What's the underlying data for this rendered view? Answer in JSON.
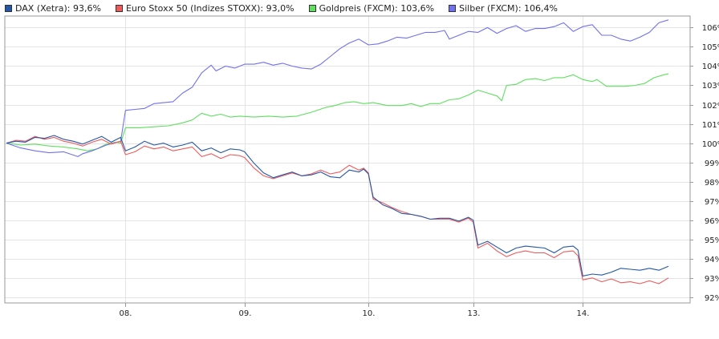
{
  "chart_data": {
    "type": "line",
    "legend_position": "top-left",
    "grid": true,
    "ylim": [
      91.7,
      106.6
    ],
    "x_ticks": [
      "08.",
      "09.",
      "10.",
      "13.",
      "14."
    ],
    "y_ticks": [
      "92%",
      "93%",
      "94%",
      "95%",
      "96%",
      "97%",
      "98%",
      "99%",
      "100%",
      "101%",
      "102%",
      "103%",
      "104%",
      "105%",
      "106%"
    ],
    "series": [
      {
        "name": "DAX (Xetra)",
        "legend_label": "DAX (Xetra): 93,6%",
        "color": "#2456a8",
        "points": [
          [
            0,
            100
          ],
          [
            2,
            100.1
          ],
          [
            4,
            100.05
          ],
          [
            6,
            100.3
          ],
          [
            8,
            100.25
          ],
          [
            10,
            100.4
          ],
          [
            12,
            100.2
          ],
          [
            14,
            100.1
          ],
          [
            16,
            99.95
          ],
          [
            18,
            100.15
          ],
          [
            20,
            100.35
          ],
          [
            22,
            100.05
          ],
          [
            24,
            100.3
          ],
          [
            25,
            99.6
          ],
          [
            27,
            99.8
          ],
          [
            29,
            100.1
          ],
          [
            31,
            99.9
          ],
          [
            33,
            100
          ],
          [
            35,
            99.8
          ],
          [
            37,
            99.9
          ],
          [
            39,
            100.05
          ],
          [
            41,
            99.6
          ],
          [
            43,
            99.75
          ],
          [
            45,
            99.5
          ],
          [
            47,
            99.7
          ],
          [
            49,
            99.65
          ],
          [
            50,
            99.55
          ],
          [
            52,
            98.95
          ],
          [
            54,
            98.45
          ],
          [
            56,
            98.2
          ],
          [
            58,
            98.35
          ],
          [
            60,
            98.5
          ],
          [
            62,
            98.3
          ],
          [
            64,
            98.35
          ],
          [
            66,
            98.5
          ],
          [
            68,
            98.25
          ],
          [
            70,
            98.2
          ],
          [
            72,
            98.6
          ],
          [
            74,
            98.5
          ],
          [
            75,
            98.65
          ],
          [
            76,
            98.4
          ],
          [
            77,
            97.2
          ],
          [
            79,
            96.8
          ],
          [
            81,
            96.6
          ],
          [
            83,
            96.35
          ],
          [
            85,
            96.3
          ],
          [
            87,
            96.2
          ],
          [
            89,
            96.05
          ],
          [
            91,
            96.1
          ],
          [
            93,
            96.1
          ],
          [
            95,
            95.95
          ],
          [
            97,
            96.15
          ],
          [
            98,
            96
          ],
          [
            99,
            94.7
          ],
          [
            101,
            94.9
          ],
          [
            103,
            94.6
          ],
          [
            105,
            94.3
          ],
          [
            107,
            94.55
          ],
          [
            109,
            94.65
          ],
          [
            111,
            94.6
          ],
          [
            113,
            94.55
          ],
          [
            115,
            94.3
          ],
          [
            117,
            94.6
          ],
          [
            119,
            94.65
          ],
          [
            120,
            94.45
          ],
          [
            121,
            93.1
          ],
          [
            123,
            93.2
          ],
          [
            125,
            93.15
          ],
          [
            127,
            93.3
          ],
          [
            129,
            93.5
          ],
          [
            131,
            93.45
          ],
          [
            133,
            93.4
          ],
          [
            135,
            93.5
          ],
          [
            137,
            93.4
          ],
          [
            139,
            93.6
          ]
        ]
      },
      {
        "name": "Euro Stoxx 50 (Indizes STOXX)",
        "legend_label": "Euro Stoxx 50 (Indizes STOXX): 93,0%",
        "color": "#f05a5a",
        "points": [
          [
            0,
            100
          ],
          [
            2,
            100.15
          ],
          [
            4,
            100.1
          ],
          [
            6,
            100.35
          ],
          [
            8,
            100.2
          ],
          [
            10,
            100.3
          ],
          [
            12,
            100.1
          ],
          [
            14,
            100
          ],
          [
            16,
            99.85
          ],
          [
            18,
            100.05
          ],
          [
            20,
            100.2
          ],
          [
            22,
            99.95
          ],
          [
            24,
            100.1
          ],
          [
            25,
            99.4
          ],
          [
            27,
            99.55
          ],
          [
            29,
            99.85
          ],
          [
            31,
            99.7
          ],
          [
            33,
            99.8
          ],
          [
            35,
            99.6
          ],
          [
            37,
            99.7
          ],
          [
            39,
            99.8
          ],
          [
            41,
            99.3
          ],
          [
            43,
            99.45
          ],
          [
            45,
            99.2
          ],
          [
            47,
            99.4
          ],
          [
            49,
            99.35
          ],
          [
            50,
            99.25
          ],
          [
            52,
            98.7
          ],
          [
            54,
            98.3
          ],
          [
            56,
            98.15
          ],
          [
            58,
            98.3
          ],
          [
            60,
            98.45
          ],
          [
            62,
            98.3
          ],
          [
            64,
            98.4
          ],
          [
            66,
            98.6
          ],
          [
            68,
            98.4
          ],
          [
            70,
            98.5
          ],
          [
            72,
            98.85
          ],
          [
            74,
            98.6
          ],
          [
            75,
            98.7
          ],
          [
            76,
            98.45
          ],
          [
            77,
            97.1
          ],
          [
            79,
            96.9
          ],
          [
            81,
            96.65
          ],
          [
            83,
            96.45
          ],
          [
            85,
            96.3
          ],
          [
            87,
            96.2
          ],
          [
            89,
            96.05
          ],
          [
            91,
            96.05
          ],
          [
            93,
            96.05
          ],
          [
            95,
            95.9
          ],
          [
            97,
            96.1
          ],
          [
            98,
            95.9
          ],
          [
            99,
            94.55
          ],
          [
            101,
            94.8
          ],
          [
            103,
            94.4
          ],
          [
            105,
            94.1
          ],
          [
            107,
            94.3
          ],
          [
            109,
            94.4
          ],
          [
            111,
            94.3
          ],
          [
            113,
            94.3
          ],
          [
            115,
            94.05
          ],
          [
            117,
            94.35
          ],
          [
            119,
            94.4
          ],
          [
            120,
            94.15
          ],
          [
            121,
            92.9
          ],
          [
            123,
            93
          ],
          [
            125,
            92.8
          ],
          [
            127,
            92.95
          ],
          [
            129,
            92.75
          ],
          [
            131,
            92.8
          ],
          [
            133,
            92.7
          ],
          [
            135,
            92.85
          ],
          [
            137,
            92.7
          ],
          [
            139,
            93
          ]
        ]
      },
      {
        "name": "Goldpreis (FXCM)",
        "legend_label": "Goldpreis (FXCM): 103,6%",
        "color": "#5ee05e",
        "points": [
          [
            0,
            100
          ],
          [
            3,
            99.9
          ],
          [
            6,
            99.95
          ],
          [
            9,
            99.85
          ],
          [
            12,
            99.8
          ],
          [
            15,
            99.7
          ],
          [
            17,
            99.6
          ],
          [
            19,
            99.7
          ],
          [
            21,
            99.95
          ],
          [
            23,
            100.05
          ],
          [
            24,
            100
          ],
          [
            25,
            100.8
          ],
          [
            28,
            100.8
          ],
          [
            31,
            100.85
          ],
          [
            34,
            100.9
          ],
          [
            37,
            101.05
          ],
          [
            39,
            101.2
          ],
          [
            41,
            101.55
          ],
          [
            43,
            101.4
          ],
          [
            45,
            101.5
          ],
          [
            47,
            101.35
          ],
          [
            49,
            101.4
          ],
          [
            52,
            101.35
          ],
          [
            55,
            101.4
          ],
          [
            58,
            101.35
          ],
          [
            61,
            101.4
          ],
          [
            64,
            101.6
          ],
          [
            67,
            101.85
          ],
          [
            69,
            101.95
          ],
          [
            71,
            102.1
          ],
          [
            73,
            102.15
          ],
          [
            75,
            102.05
          ],
          [
            77,
            102.1
          ],
          [
            80,
            101.95
          ],
          [
            83,
            101.95
          ],
          [
            85,
            102.05
          ],
          [
            87,
            101.9
          ],
          [
            89,
            102.05
          ],
          [
            91,
            102.05
          ],
          [
            93,
            102.25
          ],
          [
            95,
            102.3
          ],
          [
            97,
            102.5
          ],
          [
            99,
            102.75
          ],
          [
            101,
            102.6
          ],
          [
            103,
            102.45
          ],
          [
            104,
            102.2
          ],
          [
            105,
            103
          ],
          [
            107,
            103.05
          ],
          [
            109,
            103.3
          ],
          [
            111,
            103.35
          ],
          [
            113,
            103.25
          ],
          [
            115,
            103.4
          ],
          [
            117,
            103.4
          ],
          [
            119,
            103.55
          ],
          [
            121,
            103.3
          ],
          [
            123,
            103.2
          ],
          [
            124,
            103.3
          ],
          [
            126,
            102.95
          ],
          [
            128,
            102.95
          ],
          [
            130,
            102.95
          ],
          [
            132,
            103
          ],
          [
            134,
            103.1
          ],
          [
            136,
            103.4
          ],
          [
            138,
            103.55
          ],
          [
            139,
            103.6
          ]
        ]
      },
      {
        "name": "Silber (FXCM)",
        "legend_label": "Silber (FXCM): 106,4%",
        "color": "#7070f0",
        "points": [
          [
            0,
            100
          ],
          [
            3,
            99.75
          ],
          [
            6,
            99.6
          ],
          [
            9,
            99.5
          ],
          [
            12,
            99.55
          ],
          [
            15,
            99.3
          ],
          [
            16,
            99.45
          ],
          [
            18,
            99.6
          ],
          [
            21,
            99.9
          ],
          [
            24,
            100.1
          ],
          [
            25,
            101.7
          ],
          [
            27,
            101.75
          ],
          [
            29,
            101.8
          ],
          [
            31,
            102.05
          ],
          [
            33,
            102.1
          ],
          [
            35,
            102.15
          ],
          [
            37,
            102.6
          ],
          [
            39,
            102.9
          ],
          [
            41,
            103.65
          ],
          [
            43,
            104.05
          ],
          [
            44,
            103.75
          ],
          [
            46,
            104
          ],
          [
            48,
            103.9
          ],
          [
            50,
            104.1
          ],
          [
            52,
            104.1
          ],
          [
            54,
            104.2
          ],
          [
            56,
            104.05
          ],
          [
            58,
            104.15
          ],
          [
            60,
            104
          ],
          [
            62,
            103.9
          ],
          [
            64,
            103.85
          ],
          [
            66,
            104.1
          ],
          [
            68,
            104.5
          ],
          [
            70,
            104.9
          ],
          [
            72,
            105.2
          ],
          [
            74,
            105.4
          ],
          [
            76,
            105.1
          ],
          [
            78,
            105.15
          ],
          [
            80,
            105.3
          ],
          [
            82,
            105.5
          ],
          [
            84,
            105.45
          ],
          [
            86,
            105.6
          ],
          [
            88,
            105.75
          ],
          [
            90,
            105.75
          ],
          [
            92,
            105.85
          ],
          [
            93,
            105.4
          ],
          [
            95,
            105.6
          ],
          [
            97,
            105.8
          ],
          [
            99,
            105.75
          ],
          [
            101,
            106
          ],
          [
            103,
            105.7
          ],
          [
            105,
            105.95
          ],
          [
            107,
            106.1
          ],
          [
            109,
            105.8
          ],
          [
            111,
            105.95
          ],
          [
            113,
            105.95
          ],
          [
            115,
            106.05
          ],
          [
            117,
            106.25
          ],
          [
            119,
            105.8
          ],
          [
            121,
            106.05
          ],
          [
            123,
            106.15
          ],
          [
            125,
            105.6
          ],
          [
            127,
            105.6
          ],
          [
            129,
            105.4
          ],
          [
            131,
            105.3
          ],
          [
            133,
            105.5
          ],
          [
            135,
            105.75
          ],
          [
            137,
            106.25
          ],
          [
            139,
            106.4
          ]
        ]
      }
    ]
  }
}
